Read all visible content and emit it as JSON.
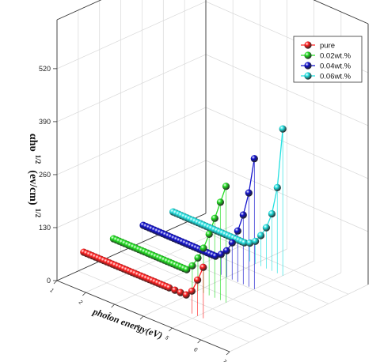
{
  "chart_data": {
    "type": "scatter",
    "projection": "3d",
    "title": "",
    "xlabel": "photon energy(eV)",
    "ylabel_main": "αhυ",
    "ylabel_unit": "(ev/cm)",
    "ylabel_exp": "1/2",
    "x_ticks": [
      "1",
      "2",
      "3",
      "4",
      "5",
      "6",
      "7"
    ],
    "z_ticks": [
      "0",
      "130",
      "260",
      "390",
      "520"
    ],
    "xlim": [
      1,
      7
    ],
    "zlim": [
      0,
      640
    ],
    "grid": true,
    "legend_position": "top-right",
    "series": [
      {
        "name": "pure",
        "color": "#ff2020",
        "x": [
          1.0,
          1.1,
          1.2,
          1.3,
          1.4,
          1.5,
          1.6,
          1.7,
          1.8,
          1.9,
          2.0,
          2.1,
          2.2,
          2.3,
          2.4,
          2.5,
          2.6,
          2.7,
          2.8,
          2.9,
          3.0,
          3.1,
          3.2,
          3.3,
          3.4,
          3.5,
          3.6,
          3.7,
          3.8,
          3.9,
          4.0,
          4.2,
          4.4,
          4.6,
          4.8,
          5.0,
          5.2
        ],
        "y": [
          40,
          40,
          40,
          40,
          40,
          40,
          40,
          40,
          40,
          40,
          40,
          40,
          40,
          40,
          40,
          40,
          40,
          40,
          40,
          40,
          40,
          40,
          40,
          40,
          40,
          40,
          40,
          40,
          40,
          40,
          40,
          40,
          40,
          40,
          55,
          88,
          125
        ]
      },
      {
        "name": "0.02wt.%",
        "color": "#22dd22",
        "x": [
          1.0,
          1.1,
          1.2,
          1.3,
          1.4,
          1.5,
          1.6,
          1.7,
          1.8,
          1.9,
          2.0,
          2.1,
          2.2,
          2.3,
          2.4,
          2.5,
          2.6,
          2.7,
          2.8,
          2.9,
          3.0,
          3.1,
          3.2,
          3.3,
          3.4,
          3.5,
          3.6,
          3.8,
          4.0,
          4.2,
          4.4,
          4.6,
          4.8,
          5.0
        ],
        "y": [
          40,
          40,
          40,
          40,
          40,
          40,
          40,
          40,
          40,
          40,
          40,
          40,
          40,
          40,
          40,
          40,
          40,
          40,
          40,
          40,
          40,
          40,
          40,
          40,
          40,
          40,
          40,
          55,
          80,
          110,
          150,
          195,
          240,
          285
        ]
      },
      {
        "name": "0.04wt.%",
        "color": "#1010cc",
        "x": [
          1.0,
          1.1,
          1.2,
          1.3,
          1.4,
          1.5,
          1.6,
          1.7,
          1.8,
          1.9,
          2.0,
          2.1,
          2.2,
          2.3,
          2.4,
          2.5,
          2.6,
          2.7,
          2.8,
          2.9,
          3.0,
          3.1,
          3.2,
          3.3,
          3.4,
          3.5,
          3.6,
          3.8,
          4.0,
          4.2,
          4.4,
          4.6,
          4.8,
          5.0
        ],
        "y": [
          40,
          40,
          40,
          40,
          40,
          40,
          40,
          40,
          40,
          40,
          40,
          40,
          40,
          40,
          40,
          40,
          40,
          40,
          40,
          40,
          40,
          40,
          40,
          40,
          40,
          40,
          40,
          50,
          65,
          90,
          125,
          170,
          230,
          320
        ]
      },
      {
        "name": "0.06wt.%",
        "color": "#22e0e0",
        "x": [
          1.0,
          1.1,
          1.2,
          1.3,
          1.4,
          1.5,
          1.6,
          1.7,
          1.8,
          1.9,
          2.0,
          2.1,
          2.2,
          2.3,
          2.4,
          2.5,
          2.6,
          2.7,
          2.8,
          2.9,
          3.0,
          3.1,
          3.2,
          3.3,
          3.4,
          3.5,
          3.6,
          3.8,
          4.0,
          4.2,
          4.4,
          4.6,
          4.8,
          5.0
        ],
        "y": [
          40,
          40,
          40,
          40,
          40,
          40,
          40,
          40,
          40,
          40,
          40,
          40,
          40,
          40,
          40,
          40,
          40,
          40,
          40,
          40,
          40,
          40,
          40,
          40,
          40,
          40,
          40,
          45,
          55,
          75,
          100,
          140,
          210,
          360
        ]
      }
    ]
  }
}
